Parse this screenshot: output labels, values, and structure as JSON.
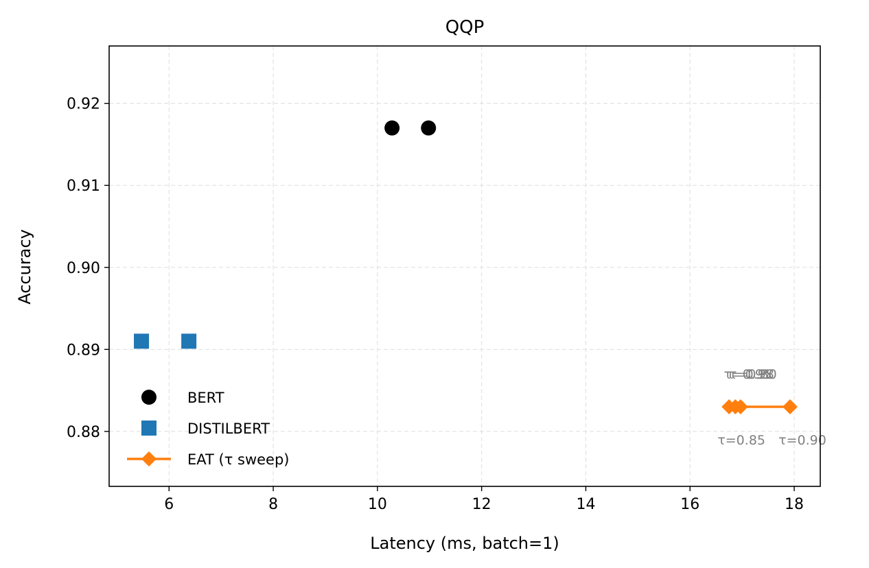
{
  "chart_data": {
    "type": "scatter",
    "title": "QQP",
    "xlabel": "Latency (ms, batch=1)",
    "ylabel": "Accuracy",
    "xlim": [
      4.85,
      18.5
    ],
    "ylim": [
      0.8733,
      0.927
    ],
    "xticks": [
      6,
      8,
      10,
      12,
      14,
      16,
      18
    ],
    "yticks": [
      0.88,
      0.89,
      0.9,
      0.91,
      0.92
    ],
    "ytick_labels": [
      "0.88",
      "0.89",
      "0.90",
      "0.91",
      "0.92"
    ],
    "grid": true,
    "legend_position": "lower-left",
    "series": [
      {
        "name": "BERT",
        "kind": "scatter",
        "marker": "circle",
        "color": "#000000",
        "points": [
          {
            "x": 10.28,
            "y": 0.917
          },
          {
            "x": 10.98,
            "y": 0.917
          }
        ]
      },
      {
        "name": "DISTILBERT",
        "kind": "scatter",
        "marker": "square",
        "color": "#1f77b4",
        "points": [
          {
            "x": 5.47,
            "y": 0.891
          },
          {
            "x": 6.38,
            "y": 0.891
          }
        ]
      },
      {
        "name": "EAT (τ sweep)",
        "kind": "line",
        "marker": "diamond",
        "color": "#ff7f0e",
        "points": [
          {
            "x": 16.75,
            "y": 0.883
          },
          {
            "x": 16.87,
            "y": 0.883
          },
          {
            "x": 16.97,
            "y": 0.883
          },
          {
            "x": 17.92,
            "y": 0.883
          }
        ]
      }
    ],
    "annotations": [
      {
        "text": "τ=0.85",
        "x": 16.75,
        "y": 0.883,
        "position": "below"
      },
      {
        "text": "τ=0.90",
        "x": 17.92,
        "y": 0.883,
        "position": "below"
      },
      {
        "text": "τ=0.95",
        "x": 16.87,
        "y": 0.883,
        "position": "above"
      },
      {
        "text": "τ=0.98",
        "x": 16.92,
        "y": 0.883,
        "position": "above"
      },
      {
        "text": "τ=0.80",
        "x": 16.97,
        "y": 0.883,
        "position": "above"
      }
    ]
  }
}
